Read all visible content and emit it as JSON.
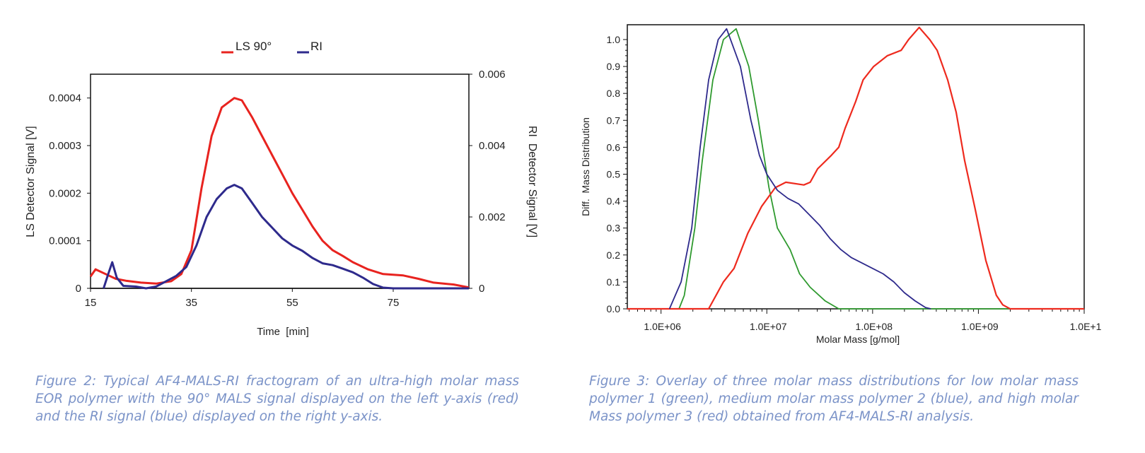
{
  "chart_data": [
    {
      "type": "line",
      "title": "",
      "xlabel": "Time  [min]",
      "ylabel": "LS Detector Signal [V]",
      "y2label": "RI  Detector Signal [V]",
      "xlim": [
        15,
        90
      ],
      "ylim": [
        0,
        0.00045
      ],
      "y2lim": [
        0,
        0.006
      ],
      "xticks": [
        "15",
        "35",
        "55",
        "75"
      ],
      "yticks": [
        "0",
        "0.0001",
        "0.0002",
        "0.0003",
        "0.0004"
      ],
      "y2ticks": [
        "0",
        "0.002",
        "0.004",
        "0.006"
      ],
      "legend_position": "top-center",
      "grid": false,
      "series": [
        {
          "name": "LS 90°",
          "axis": "left",
          "color": "#e8231f",
          "x": [
            15,
            16,
            18,
            20,
            22,
            25,
            28,
            31,
            33,
            35,
            37,
            39,
            41,
            43.5,
            45,
            47,
            49,
            51,
            53,
            55,
            57,
            59,
            61,
            63,
            65,
            67,
            70,
            73,
            77,
            80,
            83,
            87,
            90
          ],
          "y": [
            2.5e-05,
            4e-05,
            3e-05,
            2e-05,
            1.6e-05,
            1.2e-05,
            1e-05,
            1.5e-05,
            3e-05,
            8e-05,
            0.00021,
            0.00032,
            0.00038,
            0.0004,
            0.000395,
            0.00036,
            0.00032,
            0.00028,
            0.00024,
            0.0002,
            0.000165,
            0.00013,
            0.0001,
            8e-05,
            6.8e-05,
            5.5e-05,
            4e-05,
            3e-05,
            2.7e-05,
            2e-05,
            1.2e-05,
            8e-06,
            2e-06
          ]
        },
        {
          "name": "RI",
          "axis": "right",
          "color": "#2e2a8c",
          "x": [
            17.6,
            18.5,
            19.3,
            20.2,
            21.5,
            24,
            26,
            28,
            30,
            32,
            34,
            36,
            38,
            40,
            42,
            43.5,
            45,
            47,
            49,
            51,
            53,
            55,
            57,
            59,
            61,
            63,
            65,
            67,
            69,
            71,
            73,
            75,
            90
          ],
          "y": [
            0,
            0.0004,
            0.00073,
            0.0003,
            7e-05,
            5e-05,
            0,
            5e-05,
            0.0002,
            0.00035,
            0.0006,
            0.0012,
            0.002,
            0.0025,
            0.0028,
            0.0029,
            0.0028,
            0.0024,
            0.002,
            0.0017,
            0.0014,
            0.0012,
            0.00105,
            0.00085,
            0.0007,
            0.00065,
            0.00055,
            0.00045,
            0.0003,
            0.00012,
            2e-05,
            0,
            0
          ]
        }
      ]
    },
    {
      "type": "line",
      "title": "",
      "xlabel": "Molar Mass [g/mol]",
      "ylabel": "Diff.  Mass Distribution",
      "xscale": "log",
      "xlim": [
        480000,
        10000000000
      ],
      "ylim": [
        0,
        1.055
      ],
      "xticks": [
        "1.0E+06",
        "1.0E+07",
        "1.0E+08",
        "1.0E+09",
        "1.0E+1"
      ],
      "yticks": [
        "0.0",
        "0.1",
        "0.2",
        "0.3",
        "0.4",
        "0.5",
        "0.6",
        "0.7",
        "0.8",
        "0.9",
        "1.0"
      ],
      "grid": false,
      "series": [
        {
          "name": "polymer 1 (low)",
          "color": "#2f9a2f",
          "log10x": [
            6.17,
            6.22,
            6.32,
            6.39,
            6.49,
            6.59,
            6.71,
            6.83,
            6.92,
            7.02,
            7.1,
            7.22,
            7.31,
            7.41,
            7.55,
            7.68,
            9.3
          ],
          "y": [
            0,
            0.05,
            0.3,
            0.55,
            0.85,
            1.0,
            1.04,
            0.9,
            0.7,
            0.45,
            0.3,
            0.22,
            0.13,
            0.08,
            0.03,
            0,
            0
          ]
        },
        {
          "name": "polymer 2 (medium)",
          "color": "#2e2a8c",
          "log10x": [
            6.08,
            6.19,
            6.29,
            6.37,
            6.45,
            6.54,
            6.62,
            6.75,
            6.85,
            6.93,
            7.0,
            7.1,
            7.2,
            7.3,
            7.4,
            7.5,
            7.6,
            7.7,
            7.8,
            7.9,
            8.0,
            8.1,
            8.2,
            8.3,
            8.4,
            8.5,
            8.55
          ],
          "y": [
            0,
            0.1,
            0.3,
            0.6,
            0.85,
            1.0,
            1.04,
            0.9,
            0.7,
            0.57,
            0.5,
            0.44,
            0.41,
            0.39,
            0.35,
            0.31,
            0.26,
            0.22,
            0.19,
            0.17,
            0.15,
            0.13,
            0.1,
            0.06,
            0.03,
            0.005,
            0
          ]
        },
        {
          "name": "polymer 3 (high)",
          "color": "#ee2a1e",
          "log10x": [
            5.68,
            6.45,
            6.59,
            6.69,
            6.82,
            6.95,
            7.08,
            7.18,
            7.35,
            7.41,
            7.48,
            7.61,
            7.68,
            7.74,
            7.84,
            7.91,
            8.01,
            8.14,
            8.27,
            8.34,
            8.44,
            8.54,
            8.61,
            8.71,
            8.79,
            8.87,
            8.97,
            9.07,
            9.17,
            9.23,
            9.3,
            10
          ],
          "y": [
            0,
            0,
            0.1,
            0.15,
            0.28,
            0.38,
            0.45,
            0.47,
            0.46,
            0.47,
            0.52,
            0.57,
            0.6,
            0.67,
            0.77,
            0.85,
            0.9,
            0.94,
            0.96,
            1.0,
            1.045,
            1.0,
            0.96,
            0.85,
            0.73,
            0.55,
            0.37,
            0.18,
            0.05,
            0.015,
            0,
            0
          ]
        }
      ]
    }
  ],
  "captions": {
    "figure2": "Figure 2: Typical AF4-MALS-RI fractogram of an ultra-high molar mass EOR polymer with the 90° MALS signal displayed on the left y-axis (red) and the RI signal (blue) displayed on the right y-axis.",
    "figure3": "Figure 3: Overlay of three molar mass distributions for low molar mass polymer 1 (green), medium molar mass polymer 2 (blue), and high molar Mass polymer 3 (red) obtained from AF4-MALS-RI analysis."
  }
}
